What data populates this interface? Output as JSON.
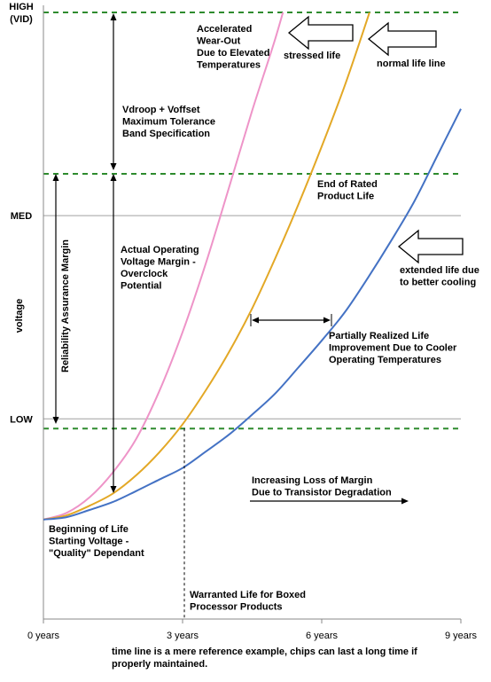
{
  "chart_data": {
    "type": "line",
    "x_unit": "years",
    "xlim": [
      0,
      9
    ],
    "x_ticks": [
      {
        "value": 0,
        "label": "0 years"
      },
      {
        "value": 3,
        "label": "3 years"
      },
      {
        "value": 6,
        "label": "6 years"
      },
      {
        "value": 9,
        "label": "9 years"
      }
    ],
    "ylabel": "voltage",
    "ylim": [
      0,
      100
    ],
    "y_ticks": [
      {
        "value": 100,
        "label": "HIGH",
        "label2": "(VID)"
      },
      {
        "value": 66.5,
        "label": "MED"
      },
      {
        "value": 33,
        "label": "LOW"
      }
    ],
    "reference_lines": [
      {
        "value": 100,
        "style": "dashed",
        "color": "#2e8b2e"
      },
      {
        "value": 73.4,
        "style": "dashed",
        "color": "#2e8b2e"
      },
      {
        "value": 31.4,
        "style": "dashed",
        "color": "#2e8b2e"
      }
    ],
    "grid_lines": [
      {
        "value": 66.5,
        "color": "#a0a0a0"
      },
      {
        "value": 33,
        "color": "#a0a0a0"
      }
    ],
    "series": [
      {
        "name": "stressed life",
        "color": "#ee94c8",
        "x": [
          0,
          0.5,
          1.0,
          1.5,
          2.0,
          2.5,
          3.0,
          3.5,
          4.0,
          4.5,
          5.0,
          5.35
        ],
        "y": [
          16.4,
          17.5,
          20.1,
          24.2,
          29.7,
          37.6,
          47.3,
          58.6,
          71.1,
          83.8,
          95.7,
          105.1
        ]
      },
      {
        "name": "normal life line",
        "color": "#e3a826",
        "x": [
          0,
          0.5,
          1.0,
          1.5,
          2.0,
          2.5,
          3.0,
          3.5,
          4.0,
          4.5,
          5.0,
          5.5,
          6.0,
          6.5,
          7.0,
          7.15
        ],
        "y": [
          16.4,
          17.1,
          18.7,
          20.7,
          23.7,
          27.5,
          32.1,
          37.7,
          44.0,
          51.2,
          59.5,
          68.4,
          77.9,
          88.0,
          99.3,
          103.0
        ]
      },
      {
        "name": "extended life due to better cooling",
        "color": "#4472c4",
        "x": [
          0,
          0.5,
          1.0,
          1.5,
          2.0,
          2.5,
          3.0,
          3.5,
          4.0,
          4.5,
          5.0,
          5.5,
          6.0,
          6.5,
          7.0,
          7.5,
          8.0,
          8.5,
          9.0
        ],
        "y": [
          16.4,
          16.8,
          18.0,
          19.3,
          21.1,
          23.0,
          24.9,
          27.6,
          30.4,
          33.7,
          37.2,
          41.5,
          45.9,
          50.6,
          56.3,
          62.4,
          68.9,
          76.5,
          84.1
        ]
      }
    ],
    "annotations": [
      {
        "lines": [
          "Accelerated",
          "Wear-Out",
          "Due to Elevated",
          "Temperatures"
        ]
      },
      {
        "lines": [
          "stressed life"
        ]
      },
      {
        "lines": [
          "normal life line"
        ]
      },
      {
        "lines": [
          "Vdroop + Voffset",
          "Maximum Tolerance",
          "Band Specification"
        ]
      },
      {
        "lines": [
          "End of Rated",
          "Product Life"
        ]
      },
      {
        "lines": [
          "Actual Operating",
          "Voltage Margin -",
          "Overclock",
          "Potential"
        ]
      },
      {
        "lines": [
          "extended life due",
          "to better cooling"
        ]
      },
      {
        "lines": [
          "Reliability Assurance Margin"
        ]
      },
      {
        "lines": [
          "Partially Realized Life",
          "Improvement Due to Cooler",
          "Operating Temperatures"
        ]
      },
      {
        "lines": [
          "Increasing Loss of Margin",
          "Due to Transistor Degradation"
        ]
      },
      {
        "lines": [
          "Beginning of Life",
          "Starting Voltage -",
          "\"Quality\" Dependant"
        ]
      },
      {
        "lines": [
          "Warranted Life for Boxed",
          "Processor Products"
        ]
      }
    ],
    "footer": [
      "time line is a mere reference example, chips can last a long time if",
      "properly maintained."
    ],
    "grid": false,
    "legend": "none"
  }
}
